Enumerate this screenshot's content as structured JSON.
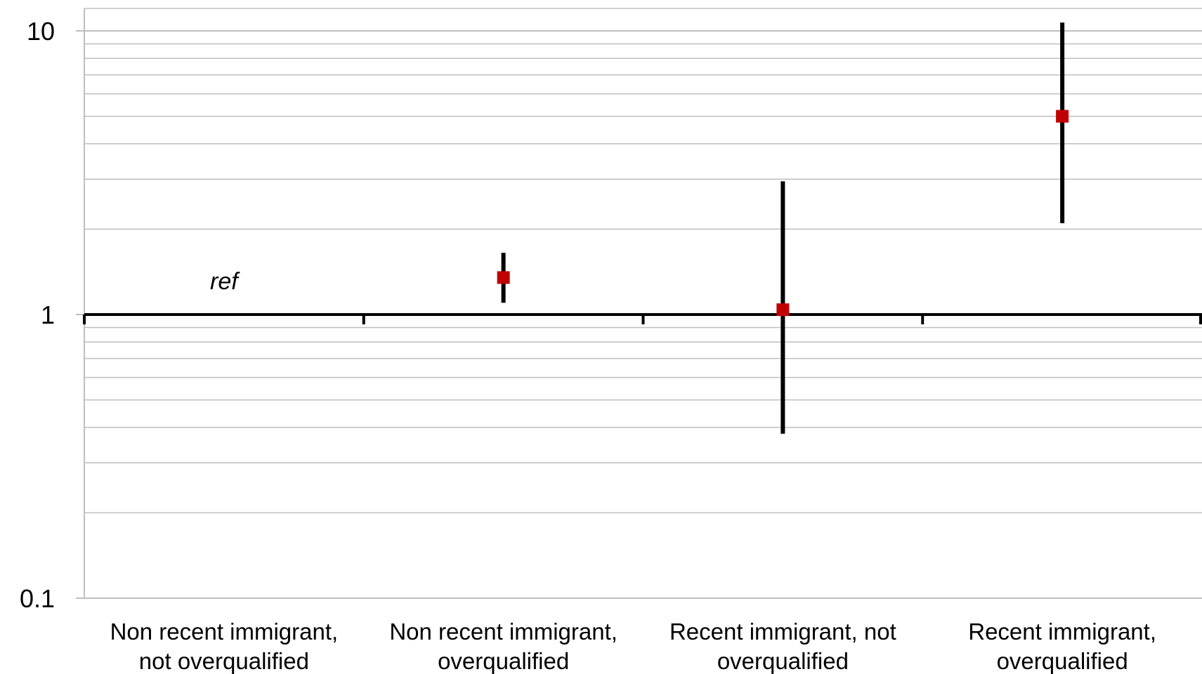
{
  "chart_data": {
    "type": "scatter",
    "title": "",
    "xlabel": "",
    "ylabel": "",
    "y_scale": "log",
    "ylim": [
      0.1,
      10
    ],
    "y_ticks": [
      "0.1",
      "1",
      "10"
    ],
    "grid": true,
    "legend": "none",
    "categories": [
      [
        "Non recent immigrant,",
        "not overqualified"
      ],
      [
        "Non recent immigrant,",
        "overqualified"
      ],
      [
        "Recent immigrant, not",
        "overqualified"
      ],
      [
        "Recent immigrant,",
        "overqualified"
      ]
    ],
    "series": [
      {
        "values": [
          null,
          1.35,
          1.04,
          5.0
        ],
        "lower": [
          null,
          1.1,
          0.38,
          2.1
        ],
        "upper": [
          null,
          1.65,
          2.95,
          10.7
        ]
      }
    ],
    "annotations": [
      {
        "text": "ref",
        "category_index": 0,
        "y": 1.0
      }
    ],
    "reference_line": 1,
    "colors": {
      "marker": "#c00000",
      "errorbar": "#000000",
      "gridline": "#bfbfbf",
      "axis": "#000000"
    }
  }
}
